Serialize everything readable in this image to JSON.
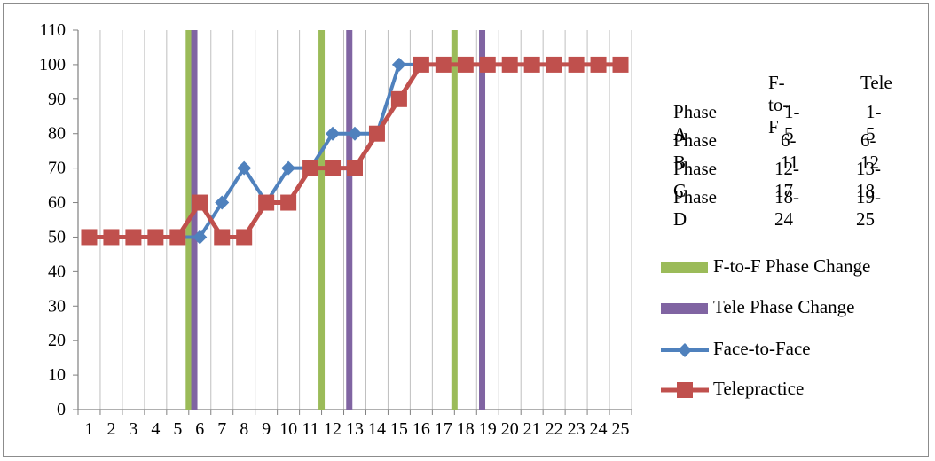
{
  "chart_data": {
    "type": "line",
    "ylim": [
      0,
      110
    ],
    "yticks": [
      0,
      10,
      20,
      30,
      40,
      50,
      60,
      70,
      80,
      90,
      100,
      110
    ],
    "categories": [
      "1",
      "2",
      "3",
      "4",
      "5",
      "6",
      "7",
      "8",
      "9",
      "10",
      "11",
      "12",
      "13",
      "14",
      "15",
      "16",
      "17",
      "18",
      "19",
      "20",
      "21",
      "22",
      "23",
      "24",
      "25"
    ],
    "xtick_labels": [
      "1",
      "2",
      "3",
      "4",
      "5",
      "6",
      "7",
      "8",
      "9",
      "10",
      "11",
      "12",
      "13",
      "14",
      "15",
      "16",
      "17",
      "18",
      "19",
      "20",
      "21",
      "22",
      "23",
      "24",
      "25"
    ],
    "grid": "vertical",
    "series": [
      {
        "name": "Face-to-Face",
        "color": "#4f81bd",
        "marker": "diamond",
        "values": [
          50,
          50,
          50,
          50,
          50,
          50,
          60,
          70,
          60,
          70,
          70,
          80,
          80,
          80,
          100,
          100,
          100,
          100,
          100,
          100,
          100,
          100,
          100,
          100,
          100
        ]
      },
      {
        "name": "Telepractice",
        "color": "#c0504d",
        "marker": "square",
        "values": [
          50,
          50,
          50,
          50,
          50,
          60,
          50,
          50,
          60,
          60,
          70,
          70,
          70,
          80,
          90,
          100,
          100,
          100,
          100,
          100,
          100,
          100,
          100,
          100,
          100
        ]
      }
    ],
    "phase_lines": [
      {
        "name": "F-to-F Phase Change",
        "color": "#9bbb59",
        "x": [
          5.5,
          11.5,
          17.5
        ]
      },
      {
        "name": "Tele Phase Change",
        "color": "#8064a2",
        "x": [
          5.75,
          12.75,
          18.75
        ]
      }
    ],
    "legend": {
      "position": "right",
      "items": [
        "F-to-F Phase Change",
        "Tele Phase Change",
        "Face-to-Face",
        "Telepractice"
      ]
    },
    "phase_table": {
      "headers": [
        "",
        "F-to-F",
        "Tele"
      ],
      "rows": [
        [
          "Phase A",
          "1-5",
          "1-5"
        ],
        [
          "Phase B",
          "6-11",
          "6-12"
        ],
        [
          "Phase C",
          "12-17",
          "13-18"
        ],
        [
          "Phase D",
          "18-24",
          "19-25"
        ]
      ]
    }
  }
}
